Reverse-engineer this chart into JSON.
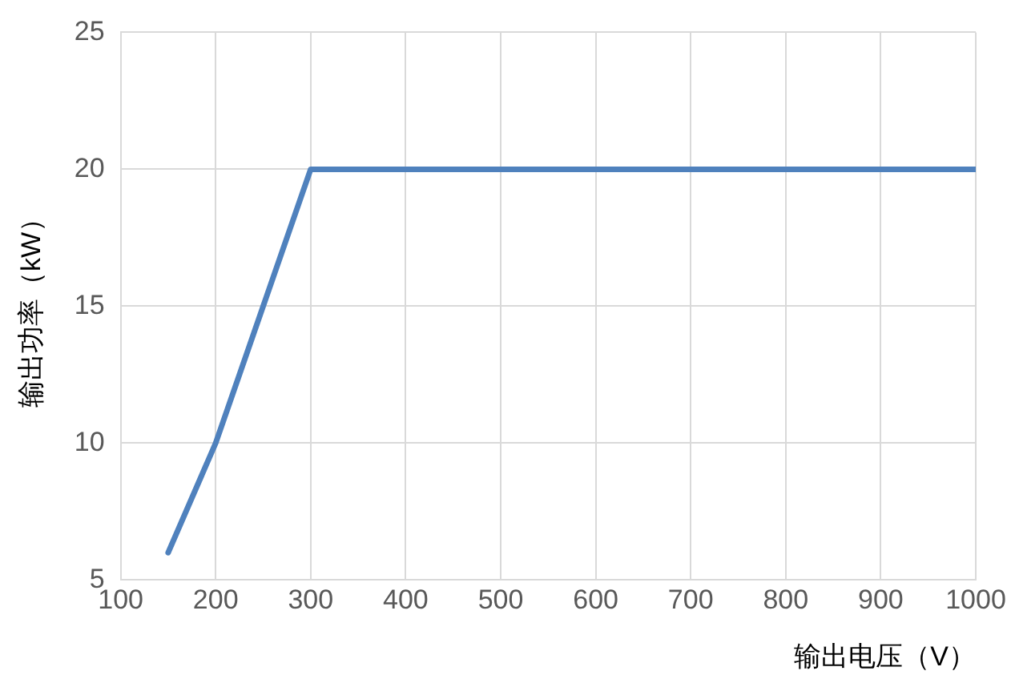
{
  "chart_data": {
    "type": "line",
    "xlabel": "输出电压（V）",
    "ylabel": "输出功率（kW）",
    "x": [
      150,
      200,
      250,
      300,
      1000
    ],
    "series": [
      {
        "color": "#4f81bd",
        "values": [
          6,
          10,
          15,
          20,
          20
        ]
      }
    ],
    "xlim": [
      100,
      1000
    ],
    "xticks": [
      100,
      200,
      300,
      400,
      500,
      600,
      700,
      800,
      900,
      1000
    ],
    "ylim": [
      5,
      25
    ],
    "yticks": [
      5,
      10,
      15,
      20,
      25
    ],
    "grid": true,
    "legend": false,
    "marker": "none",
    "line_style": "solid"
  }
}
